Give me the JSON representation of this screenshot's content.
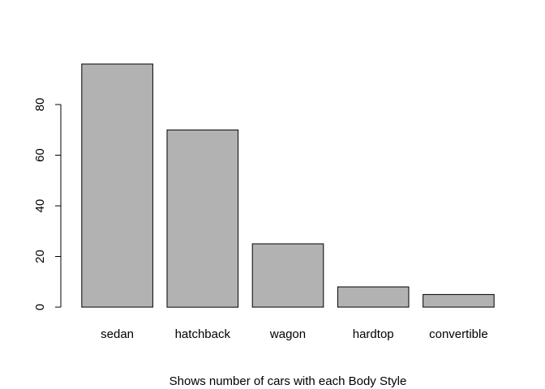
{
  "chart_data": {
    "type": "bar",
    "categories": [
      "sedan",
      "hatchback",
      "wagon",
      "hardtop",
      "convertible"
    ],
    "values": [
      96,
      70,
      25,
      8,
      5
    ],
    "title": "",
    "xlabel": "Shows number of cars with each Body Style",
    "ylabel": "",
    "ylim": [
      0,
      96
    ],
    "yticks": [
      0,
      20,
      40,
      60,
      80
    ],
    "grid": false,
    "legend": "none",
    "colors": {
      "bar_fill": "#b2b2b2",
      "bar_stroke": "#000000"
    }
  }
}
